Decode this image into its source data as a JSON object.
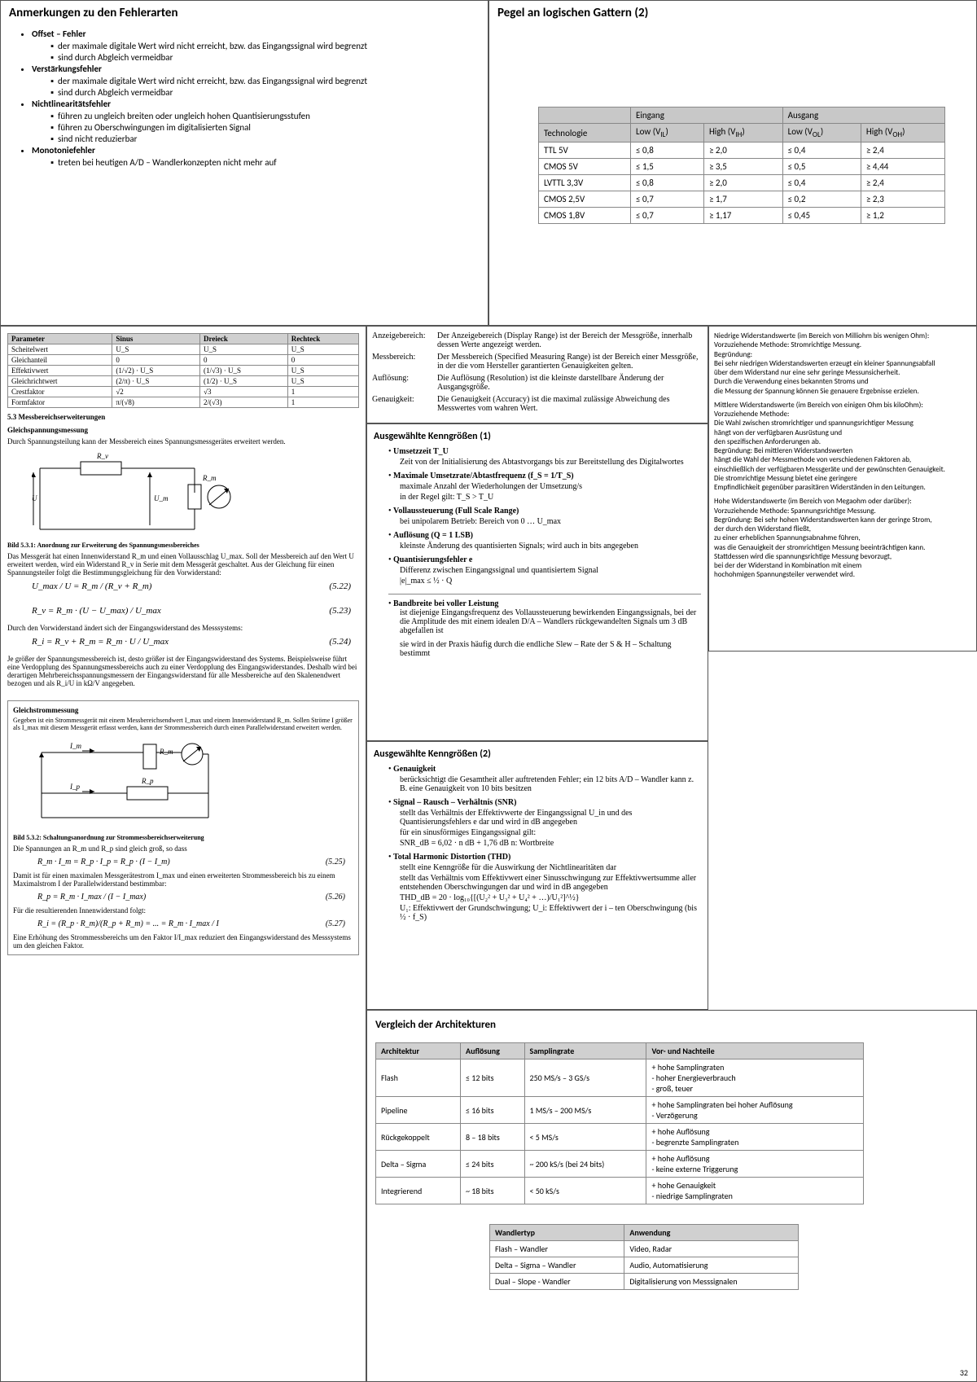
{
  "panel_fehler": {
    "title": "Anmerkungen zu den Fehlerarten",
    "sections": [
      {
        "h": "Offset – Fehler",
        "items": [
          "der maximale digitale Wert wird nicht erreicht, bzw. das Eingangssignal wird begrenzt",
          "sind durch Abgleich vermeidbar"
        ]
      },
      {
        "h": "Verstärkungsfehler",
        "items": [
          "der maximale digitale Wert wird nicht erreicht, bzw. das Eingangssignal wird begrenzt",
          "sind durch Abgleich vermeidbar"
        ]
      },
      {
        "h": "Nichtlinearitätsfehler",
        "items": [
          "führen zu ungleich breiten oder ungleich hohen Quantisierungsstufen",
          "führen zu Oberschwingungen im digitalisierten Signal",
          "sind nicht reduzierbar"
        ]
      },
      {
        "h": "Monotoniefehler",
        "items": [
          "treten bei heutigen A/D – Wandlerkonzepten nicht mehr auf"
        ]
      }
    ]
  },
  "panel_pegel": {
    "title": "Pegel an logischen Gattern (2)",
    "cols_top": [
      "",
      "Eingang",
      "Ausgang"
    ],
    "cols": [
      "Technologie",
      "Low (V_IL)",
      "High (V_IH)",
      "Low (V_OL)",
      "High (V_OH)"
    ],
    "rows": [
      [
        "TTL 5V",
        "≤ 0,8",
        "≥ 2,0",
        "≤ 0,4",
        "≥ 2,4"
      ],
      [
        "CMOS 5V",
        "≤ 1,5",
        "≥ 3,5",
        "≤ 0,5",
        "≥ 4,44"
      ],
      [
        "LVTTL 3,3V",
        "≤ 0,8",
        "≥ 2,0",
        "≤ 0,4",
        "≥ 2,4"
      ],
      [
        "CMOS 2,5V",
        "≤ 0,7",
        "≥ 1,7",
        "≤ 0,2",
        "≥ 2,3"
      ],
      [
        "CMOS 1,8V",
        "≤ 0,7",
        "≥ 1,17",
        "≤ 0,45",
        "≥ 1,2"
      ]
    ]
  },
  "panel_param": {
    "cols": [
      "Parameter",
      "Sinus",
      "Dreieck",
      "Rechteck"
    ],
    "rows": [
      [
        "Scheitelwert",
        "U_S",
        "U_S",
        "U_S"
      ],
      [
        "Gleichanteil",
        "0",
        "0",
        "0"
      ],
      [
        "Effektivwert",
        "(1/√2) · U_S",
        "(1/√3) · U_S",
        "U_S"
      ],
      [
        "Gleichrichtwert",
        "(2/π) · U_S",
        "(1/2) · U_S",
        "U_S"
      ],
      [
        "Crestfaktor",
        "√2",
        "√3",
        "1"
      ],
      [
        "Formfaktor",
        "π/(√8)",
        "2/(√3)",
        "1"
      ]
    ],
    "sec": "5.3    Messbereichserweiterungen",
    "sub": "Gleichspannungsmessung",
    "p1": "Durch Spannungsteilung kann der Messbereich eines Spannungsmessgerätes erweitert werden.",
    "bild1": "Bild 5.3.1: Anordnung zur Erweiterung des Spannungsmessbereiches",
    "p2": "Das Messgerät hat einen Innenwiderstand R_m und einen Vollausschlag U_max. Soll der Messbereich auf den Wert U erweitert werden, wird ein Widerstand R_v in Serie mit dem Messgerät geschaltet. Aus der Gleichung für einen Spannungsteiler folgt die Bestimmungsgleichung für den Vorwiderstand:",
    "eq1": "U_max / U  =  R_m / (R_v + R_m)",
    "eq1n": "(5.22)",
    "eq2": "R_v = R_m · (U − U_max) / U_max",
    "eq2n": "(5.23)",
    "p3": "Durch den Vorwiderstand ändert sich der Eingangswiderstand des Messsystems:",
    "eq3": "R_i = R_v + R_m = R_m · U / U_max",
    "eq3n": "(5.24)",
    "p4": "Je größer der Spannungsmessbereich ist, desto größer ist der Eingangswiderstand des Systems. Beispielsweise führt eine Verdopplung des Spannungsmessbereichs auch zu einer Verdopplung des Eingangswiderstandes. Deshalb wird bei derartigen Mehrbereichsspannungsmessern der Eingangswiderstand für alle Messbereiche auf den Skalenendwert bezogen und als R_i/U in kΩ/V angegeben.",
    "sub2": "Gleichstrommessung",
    "p5": "Gegeben ist ein Strommessgerät mit einem Messbereichsendwert I_max und einem Innenwiderstand R_m. Sollen Ströme I größer als I_max mit diesem Messgerät erfasst werden, kann der Strommessbereich durch einen Parallelwiderstand erweitert werden.",
    "bild2": "Bild 5.3.2: Schaltungsanordnung zur Strommessbereichserweiterung",
    "p6": "Die Spannungen an R_m und R_p sind gleich groß, so dass",
    "eq4": "R_m · I_m = R_p · I_p = R_p · (I − I_m)",
    "eq4n": "(5.25)",
    "p7": "Damit ist für einen maximalen Messgerätestrom I_max und einen erweiterten Strommessbereich bis zu einem Maximalstrom I der Parallelwiderstand bestimmbar:",
    "eq5": "R_p = R_m · I_max / (I − I_max)",
    "eq5n": "(5.26)",
    "p8": "Für die resultierenden Innenwiderstand folgt:",
    "eq6": "R_i = (R_p · R_m)/(R_p + R_m) = ... = R_m · I_max / I",
    "eq6n": "(5.27)",
    "p9": "Eine Erhöhung des Strommessbereichs um den Faktor I/I_max reduziert den Eingangswiderstand des Messsystems um den gleichen Faktor."
  },
  "panel_defs": {
    "rows": [
      [
        "Anzeigebereich:",
        "Der Anzeigebereich (Display Range) ist der Bereich der Messgröße, innerhalb dessen Werte angezeigt werden."
      ],
      [
        "Messbereich:",
        "Der Messbereich (Specified Measuring Range) ist der Bereich einer Messgröße, in der die vom Hersteller garantierten Genauigkeiten gelten."
      ],
      [
        "Auflösung:",
        "Die Auflösung (Resolution) ist die kleinste darstellbare Änderung der Ausgangsgröße."
      ],
      [
        "Genauigkeit:",
        "Die Genauigkeit (Accuracy) ist die maximal zulässige Abweichung des Messwertes vom wahren Wert."
      ]
    ]
  },
  "panel_kg1": {
    "title": "Ausgewählte Kenngrößen (1)",
    "items": [
      [
        "Umsetzzeit T_U",
        "Zeit von der Initialisierung des Abtastvorgangs bis zur Bereitstellung des Digitalwortes"
      ],
      [
        "Maximale Umsetzrate/Abtastfrequenz (f_S = 1/T_S)",
        "maximale Anzahl der Wiederholungen der Umsetzung/s",
        "in der Regel gilt: T_S > T_U"
      ],
      [
        "Vollaussteuerung (Full Scale Range)",
        "bei unipolarem Betrieb: Bereich von 0 … U_max"
      ],
      [
        "Auflösung (Q = 1 LSB)",
        "kleinste Änderung des quantisierten Signals; wird auch in bits angegeben"
      ],
      [
        "Quantisierungsfehler e",
        "Differenz zwischen Eingangssignal und quantisiertem Signal",
        "|e|_max ≤ ½ · Q"
      ]
    ],
    "band": [
      "Bandbreite bei voller Leistung",
      "ist diejenige Eingangsfrequenz des Vollaussteuerung bewirkenden Eingangssignals, bei der die Amplitude des mit einem idealen D/A – Wandlers rückgewandelten Signals um 3 dB abgefallen ist",
      "sie wird in der Praxis häufig durch die endliche Slew – Rate der S & H – Schaltung bestimmt"
    ]
  },
  "panel_kg2": {
    "title": "Ausgewählte Kenngrößen (2)",
    "items": [
      [
        "Genauigkeit",
        "berücksichtigt die Gesamtheit aller auftretenden Fehler; ein 12 bits A/D – Wandler kann z. B. eine Genauigkeit von 10 bits besitzen"
      ],
      [
        "Signal – Rausch – Verhältnis (SNR)",
        "stellt das Verhältnis der Effektivwerte der Eingangssignal U_in und des Quantisierungsfehlers e dar und wird in dB angegeben",
        "für ein sinusförmiges Eingangssignal gilt:",
        "SNR_dB = 6,02 · n dB + 1,76 dB          n: Wortbreite"
      ],
      [
        "Total Harmonic Distortion (THD)",
        "stellt eine Kenngröße für die Auswirkung der Nichtlinearitäten dar",
        "stellt das Verhältnis vom Effektivwert einer Sinusschwingung zur Effektivwertsumme aller entstehenden Oberschwingungen dar und wird in dB angegeben",
        "THD_dB = 20 · log₁₀{[(U₂² + U₃² + U₄² + …)/U₁²]^½}",
        "U₁: Effektivwert der Grundschwingung; U_i: Effektivwert der i – ten Oberschwingung (bis ½ · f_S)"
      ]
    ]
  },
  "panel_arch": {
    "title": "Vergleich der Architekturen",
    "cols": [
      "Architektur",
      "Auflösung",
      "Samplingrate",
      "Vor- und Nachteile"
    ],
    "rows": [
      [
        "Flash",
        "≤ 12 bits",
        "250 MS/s – 3 GS/s",
        "+ hohe Samplingraten\n- hoher Energieverbrauch\n- groß, teuer"
      ],
      [
        "Pipeline",
        "≤ 16 bits",
        "1 MS/s – 200 MS/s",
        "+ hohe Samplingraten bei hoher Auflösung\n- Verzögerung"
      ],
      [
        "Rückgekoppelt",
        "8 – 18 bits",
        "< 5 MS/s",
        "+ hohe Auflösung\n- begrenzte Samplingraten"
      ],
      [
        "Delta – Sigma",
        "≤ 24 bits",
        "~ 200 kS/s (bei 24 bits)",
        "+ hohe Auflösung\n- keine externe Triggerung"
      ],
      [
        "Integrierend",
        "~ 18 bits",
        "< 50 kS/s",
        "+ hohe Genauigkeit\n- niedrige Samplingraten"
      ]
    ],
    "cols2": [
      "Wandlertyp",
      "Anwendung"
    ],
    "rows2": [
      [
        "Flash – Wandler",
        "Video, Radar"
      ],
      [
        "Delta – Sigma – Wandler",
        "Audio, Automatisierung"
      ],
      [
        "Dual – Slope - Wandler",
        "Digitalisierung von Messsignalen"
      ]
    ],
    "page": "32"
  },
  "panel_resist": {
    "p": [
      "Niedrige Widerstandswerte (im Bereich von Milliohm bis wenigen Ohm):",
      "   Vorzuziehende Methode: Stromrichtige Messung.",
      "   Begründung:",
      "Bei sehr niedrigen Widerstandswerten erzeugt ein kleiner Spannungsabfall",
      "über dem Widerstand nur eine sehr geringe Messunsicherheit.",
      "Durch die Verwendung eines bekannten Stroms und",
      "die Messung der Spannung können Sie genauere Ergebnisse erzielen.",
      "",
      "   Mittlere Widerstandswerte (im Bereich von einigen Ohm bis kiloOhm):",
      "   Vorzuziehende Methode:",
      "Die Wahl zwischen stromrichtiger und spannungsrichtiger Messung",
      "hängt von der verfügbaren Ausrüstung und",
      "den spezifischen Anforderungen ab.",
      "   Begründung: Bei mittleren Widerstandswerten",
      "hängt die Wahl der Messmethode von verschiedenen Faktoren ab,",
      "einschließlich der verfügbaren Messgeräte und der gewünschten Genauigkeit.",
      "Die stromrichtige Messung bietet eine geringere",
      "Empfindlichkeit gegenüber parasitären Widerständen in den Leitungen.",
      "",
      "   Hohe Widerstandswerte (im Bereich von Megaohm oder darüber):",
      "   Vorzuziehende Methode: Spannungsrichtige Messung.",
      "   Begründung: Bei sehr hohen Widerstandswerten kann der geringe Strom,",
      "der durch den Widerstand fließt,",
      "zu einer erheblichen Spannungsabnahme führen,",
      "was die Genauigkeit der stromrichtigen Messung beeinträchtigen kann.",
      "Stattdessen wird die spannungsrichtige Messung bevorzugt,",
      "bei der der Widerstand in Kombination mit einem",
      "hochohmigen Spannungsteiler verwendet wird."
    ]
  }
}
